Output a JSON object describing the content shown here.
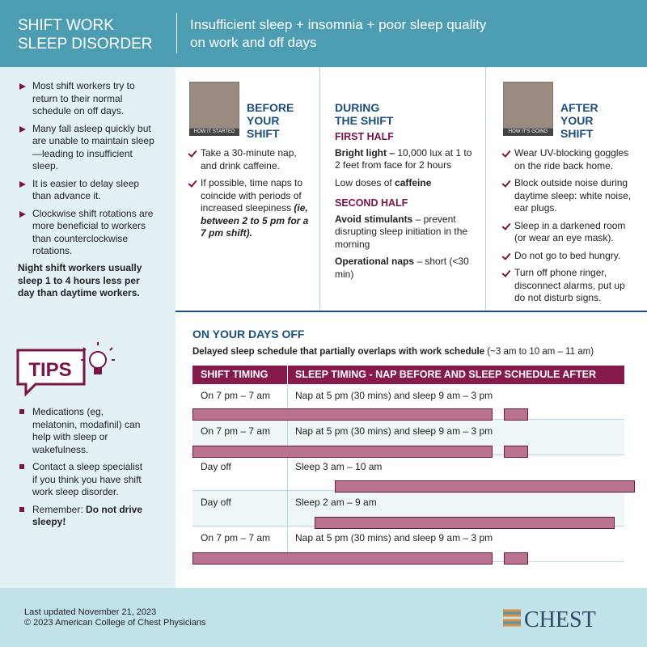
{
  "header": {
    "title": [
      "SHIFT WORK",
      "SLEEP DISORDER"
    ],
    "subtitle": [
      "Insufficient sleep + insomnia + poor sleep quality",
      "on work and off days"
    ]
  },
  "sidebar": {
    "bullets": [
      "Most shift workers try to return to their normal schedule on off days.",
      "Many fall asleep quickly but are unable to maintain sleep—leading to insufficient sleep.",
      "It is easier to delay sleep than advance it.",
      "Clockwise shift rotations are more beneficial to workers than counterclockwise rotations."
    ],
    "note": "Night shift workers usually sleep 1 to 4 hours less per day than daytime workers."
  },
  "tips": {
    "label": "TIPS",
    "items": [
      [
        {
          "text": "Medications (eg, melatonin, modafinil) can help with sleep or wakefulness."
        }
      ],
      [
        {
          "text": "Contact a sleep specialist if you think you have shift work sleep disorder."
        }
      ],
      [
        {
          "text": "Remember: "
        },
        {
          "bold": "Do not drive sleepy!"
        }
      ]
    ]
  },
  "before": {
    "photo_caption": "HOW IT STARTED",
    "heading": [
      "BEFORE",
      "YOUR",
      "SHIFT"
    ],
    "items": [
      [
        {
          "text": "Take a 30-minute nap, and drink caffeine."
        }
      ],
      [
        {
          "text": "If possible, time naps to coincide with periods of increased sleepiness "
        },
        {
          "bolditalic": "(ie, between 2 to 5 pm for a 7 pm shift)."
        }
      ]
    ]
  },
  "during": {
    "heading": [
      "DURING",
      "THE SHIFT"
    ],
    "first_half": {
      "heading": "FIRST HALF",
      "items": [
        [
          {
            "bold": "Bright light –"
          },
          {
            "text": " 10,000 lux at 1 to 2 feet from face for 2 hours"
          }
        ],
        [
          {
            "text": "Low doses of "
          },
          {
            "bold": "caffeine"
          }
        ]
      ]
    },
    "second_half": {
      "heading": "SECOND HALF",
      "items": [
        [
          {
            "bold": "Avoid stimulants"
          },
          {
            "text": " – prevent disrupting sleep initiation in the morning"
          }
        ],
        [
          {
            "bold": "Operational naps"
          },
          {
            "text": " – short (<30 min)"
          }
        ]
      ]
    }
  },
  "after": {
    "photo_caption": "HOW IT'S GOING",
    "heading": [
      "AFTER",
      "YOUR",
      "SHIFT"
    ],
    "items": [
      "Wear UV-blocking goggles on the ride back home.",
      "Block outside noise during daytime sleep: white noise, ear plugs.",
      "Sleep in a darkened room (or wear an eye mask).",
      "Do not go to bed hungry.",
      "Turn off phone ringer, disconnect alarms, put up do not disturb signs."
    ]
  },
  "days_off": {
    "heading": "ON YOUR DAYS OFF",
    "subtitle": [
      {
        "bold": "Delayed sleep schedule that partially overlaps with work schedule"
      },
      {
        "text": " (~3 am to 10 am – 11 am)"
      }
    ],
    "table": {
      "columns": [
        "SHIFT TIMING",
        "SLEEP TIMING - NAP BEFORE AND SLEEP SCHEDULE AFTER"
      ],
      "rows": [
        [
          "On 7 pm – 7 am",
          "Nap at 5 pm (30 mins) and sleep 9 am – 3 pm"
        ],
        [
          "On 7 pm – 7 am",
          "Nap at 5 pm (30 mins) and sleep 9 am – 3 pm"
        ],
        [
          "Day off",
          "Sleep 3 am – 10 am"
        ],
        [
          "Day off",
          "Sleep 2 am – 9 am"
        ],
        [
          "On 7 pm – 7 am",
          "Nap at 5 pm (30 mins) and sleep 9 am – 3 pm"
        ]
      ]
    }
  },
  "footer": {
    "updated": "Last updated November 21, 2023",
    "copyright": "© 2023 American College of Chest Physicians",
    "logo": "CHEST"
  }
}
